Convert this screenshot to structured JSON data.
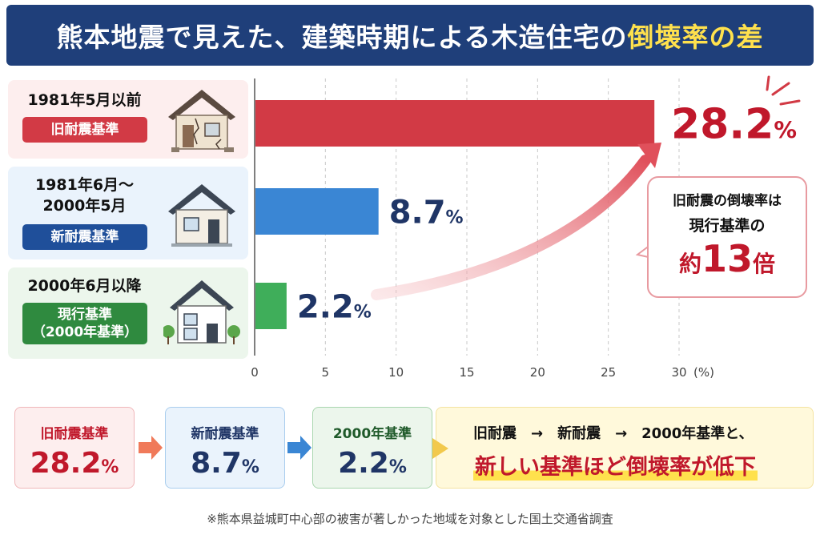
{
  "header": {
    "title_main": "熊本地震で見えた、建築時期による木造住宅の",
    "title_highlight": "倒壊率の差"
  },
  "rows": [
    {
      "period": "1981年5月以前",
      "badge": "旧耐震基準",
      "color": "#d23a45"
    },
    {
      "period": "1981年6月～\n2000年5月",
      "period_line1": "1981年6月～",
      "period_line2": "2000年5月",
      "badge": "新耐震基準",
      "color": "#2f6fbf"
    },
    {
      "period": "2000年6月以降",
      "badge_line1": "現行基準",
      "badge_line2": "（2000年基準）",
      "color": "#2f8a3f"
    }
  ],
  "chart_data": {
    "type": "bar",
    "orientation": "horizontal",
    "categories": [
      "旧耐震基準",
      "新耐震基準",
      "現行基準（2000年基準）"
    ],
    "values": [
      28.2,
      8.7,
      2.2
    ],
    "value_labels": [
      "28.2",
      "8.7",
      "2.2"
    ],
    "unit": "%",
    "colors": [
      "#d23a45",
      "#3a86d4",
      "#3fae5a"
    ],
    "label_colors": [
      "#c0182b",
      "#1f3566",
      "#1f3566"
    ],
    "xlim": [
      0,
      30
    ],
    "xticks": [
      "0",
      "5",
      "10",
      "15",
      "20",
      "25",
      "30"
    ],
    "xunit": "(%)",
    "grid": "vertical dashed"
  },
  "callout": {
    "line1": "旧耐震の倒壊率は",
    "line2": "現行基準の",
    "prefix": "約",
    "number": "13",
    "suffix": "倍"
  },
  "summary": [
    {
      "label": "旧耐震基準",
      "value": "28.2",
      "unit": "%",
      "color": "#c0182b"
    },
    {
      "label": "新耐震基準",
      "value": "8.7",
      "unit": "%",
      "color": "#1f3566"
    },
    {
      "label": "2000年基準",
      "value": "2.2",
      "unit": "%",
      "color": "#1f3566"
    }
  ],
  "conclusion": {
    "line1": "旧耐震　→　新耐震　→　2000年基準と、",
    "line2": "新しい基準ほど倒壊率が低下"
  },
  "footnote": "※熊本県益城町中心部の被害が著しかった地域を対象とした国土交通省調査"
}
